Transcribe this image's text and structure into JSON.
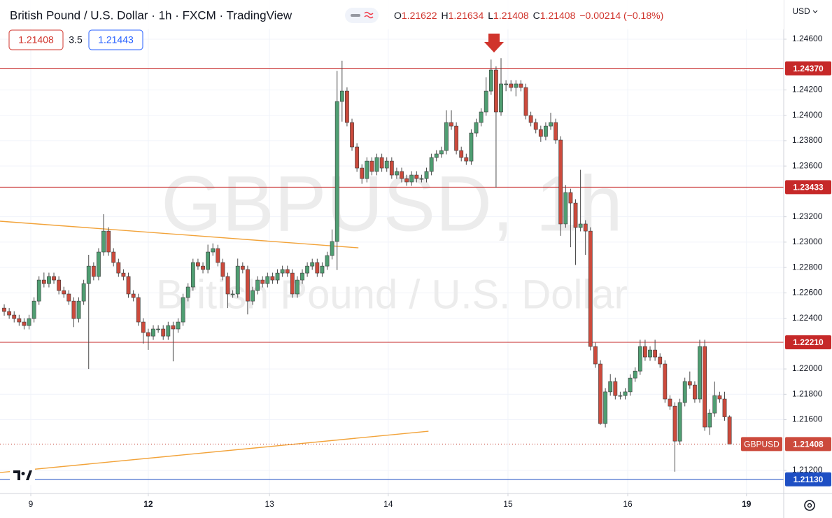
{
  "chart_data": {
    "type": "candlestick",
    "title": "British Pound / U.S. Dollar · 1h · FXCM · TradingView",
    "watermark_symbol": "GBPUSD, 1h",
    "watermark_name": "British Pound / U.S. Dollar",
    "currency": "USD",
    "legend_values": [
      {
        "key": "O",
        "value": "1.21622"
      },
      {
        "key": "H",
        "value": "1.21634"
      },
      {
        "key": "L",
        "value": "1.21408"
      },
      {
        "key": "C",
        "value": "1.21408"
      }
    ],
    "change": "−0.00214 (−0.18%)",
    "bid": "1.21408",
    "spread": "3.5",
    "ask": "1.21443",
    "up_color": "#4f9e72",
    "down_color": "#cc4a3c",
    "series": [
      {
        "name": "GBPUSD",
        "open": [
          1.2248,
          1.22453,
          1.22425,
          1.22397,
          1.2237,
          1.22342,
          1.22397,
          1.22535,
          1.22701,
          1.22673,
          1.22729,
          1.22701,
          1.22618,
          1.22591,
          1.22535,
          1.22397,
          1.22535,
          1.22673,
          1.22811,
          1.22729,
          1.22922,
          1.23087,
          1.22922,
          1.22839,
          1.22756,
          1.22729,
          1.22591,
          1.22563,
          1.2237,
          1.22287,
          1.22259,
          1.22315,
          1.22315,
          1.22259,
          1.22342,
          1.22315,
          1.2237,
          1.22563,
          1.22646,
          1.22839,
          1.22811,
          1.22784,
          1.22922,
          1.22949,
          1.22839,
          1.22729,
          1.22591,
          1.22591,
          1.22811,
          1.22784,
          1.22535,
          1.22618,
          1.22701,
          1.22673,
          1.22729,
          1.22701,
          1.22756,
          1.22784,
          1.22756,
          1.22591,
          1.22701,
          1.22756,
          1.22811,
          1.22839,
          1.22756,
          1.22811,
          1.22894,
          1.23005,
          1.24109,
          1.24191,
          1.23943,
          1.2375,
          1.23584,
          1.23501,
          1.23639,
          1.23557,
          1.23667,
          1.23584,
          1.23639,
          1.23529,
          1.23557,
          1.23501,
          1.23474,
          1.23529,
          1.23501,
          1.23501,
          1.23557,
          1.23667,
          1.23695,
          1.23722,
          1.23943,
          1.23915,
          1.23722,
          1.23667,
          1.23639,
          1.2386,
          1.23943,
          1.24026,
          1.24191,
          1.24357,
          1.24026,
          1.24247,
          1.24247,
          1.24219,
          1.24247,
          1.24219,
          1.23998,
          1.23943,
          1.23888,
          1.23833,
          1.23915,
          1.23943,
          1.23805,
          1.23143,
          1.23391,
          1.23308,
          1.23115,
          1.23143,
          1.23087,
          1.22177,
          1.22039,
          1.21569,
          1.21819,
          1.21901,
          1.2179,
          1.2179,
          1.21819,
          1.21928,
          1.21983,
          1.22177,
          1.22094,
          1.22149,
          1.22094,
          1.22039,
          1.21763,
          1.21707,
          1.21431,
          1.21735,
          1.21901,
          1.21873,
          1.21763,
          1.22177,
          1.21542,
          1.21652,
          1.2179,
          1.21763,
          1.21622
        ],
        "high": [
          1.2251,
          1.2248,
          1.22455,
          1.22427,
          1.224,
          1.22427,
          1.22565,
          1.22731,
          1.2276,
          1.22759,
          1.22759,
          1.22731,
          1.22648,
          1.22621,
          1.22565,
          1.22565,
          1.22703,
          1.229,
          1.22841,
          1.22952,
          1.2322,
          1.23117,
          1.22952,
          1.22869,
          1.22786,
          1.22759,
          1.22621,
          1.22593,
          1.224,
          1.22317,
          1.22345,
          1.22345,
          1.22345,
          1.22372,
          1.22372,
          1.224,
          1.22593,
          1.22676,
          1.22869,
          1.22869,
          1.22841,
          1.2298,
          1.2299,
          1.22979,
          1.22869,
          1.22759,
          1.22621,
          1.2287,
          1.22841,
          1.22814,
          1.22648,
          1.22731,
          1.22731,
          1.22759,
          1.22759,
          1.22786,
          1.22814,
          1.22814,
          1.22786,
          1.22731,
          1.22786,
          1.22841,
          1.22869,
          1.22869,
          1.22841,
          1.22924,
          1.231,
          1.2435,
          1.2443,
          1.24221,
          1.23973,
          1.2378,
          1.23614,
          1.23669,
          1.23669,
          1.23697,
          1.23697,
          1.23669,
          1.23669,
          1.23587,
          1.23587,
          1.23531,
          1.23559,
          1.23559,
          1.23531,
          1.23587,
          1.23697,
          1.23725,
          1.23752,
          1.2404,
          1.2404,
          1.23945,
          1.23752,
          1.23697,
          1.2389,
          1.23973,
          1.24056,
          1.243,
          1.2444,
          1.24387,
          1.2445,
          1.24277,
          1.24277,
          1.24277,
          1.24277,
          1.24249,
          1.24028,
          1.23973,
          1.23918,
          1.23945,
          1.2402,
          1.23973,
          1.23835,
          1.2345,
          1.23421,
          1.23338,
          1.2357,
          1.23173,
          1.23117,
          1.22207,
          1.22069,
          1.21849,
          1.2196,
          1.21931,
          1.2182,
          1.21849,
          1.21958,
          1.22013,
          1.2223,
          1.2223,
          1.22179,
          1.2223,
          1.22124,
          1.22069,
          1.21793,
          1.21737,
          1.21765,
          1.21931,
          1.2198,
          1.21903,
          1.2223,
          1.2223,
          1.21682,
          1.219,
          1.2182,
          1.2182,
          1.21634
        ],
        "low": [
          1.2242,
          1.22395,
          1.22367,
          1.2234,
          1.22312,
          1.22312,
          1.22367,
          1.22505,
          1.22643,
          1.22643,
          1.22671,
          1.22588,
          1.22561,
          1.22505,
          1.2233,
          1.22367,
          1.22505,
          1.22,
          1.22699,
          1.22699,
          1.22892,
          1.22892,
          1.22809,
          1.22726,
          1.22699,
          1.22561,
          1.22533,
          1.2234,
          1.222,
          1.2215,
          1.22229,
          1.22285,
          1.22229,
          1.22229,
          1.2206,
          1.22285,
          1.2234,
          1.22533,
          1.22616,
          1.22781,
          1.22754,
          1.22754,
          1.22892,
          1.22809,
          1.22699,
          1.2248,
          1.22561,
          1.22561,
          1.22754,
          1.2243,
          1.22505,
          1.22588,
          1.22643,
          1.22643,
          1.22671,
          1.22671,
          1.22726,
          1.22726,
          1.22561,
          1.22561,
          1.22671,
          1.22726,
          1.22781,
          1.22726,
          1.22726,
          1.22781,
          1.22864,
          1.2278,
          1.2395,
          1.23913,
          1.2372,
          1.23554,
          1.2346,
          1.23471,
          1.23527,
          1.23527,
          1.23554,
          1.23554,
          1.23499,
          1.23499,
          1.23471,
          1.23444,
          1.23444,
          1.23471,
          1.23471,
          1.23471,
          1.23527,
          1.23637,
          1.23665,
          1.23692,
          1.23885,
          1.23692,
          1.23637,
          1.23609,
          1.23609,
          1.2383,
          1.23913,
          1.23996,
          1.24161,
          1.2343,
          1.23996,
          1.2419,
          1.24189,
          1.2415,
          1.24189,
          1.23968,
          1.23913,
          1.23858,
          1.2379,
          1.23803,
          1.23885,
          1.23775,
          1.2305,
          1.23113,
          1.2296,
          1.2282,
          1.23085,
          1.229,
          1.22147,
          1.22009,
          1.2156,
          1.21539,
          1.21789,
          1.2176,
          1.2176,
          1.2176,
          1.21789,
          1.21898,
          1.21953,
          1.22064,
          1.22064,
          1.22064,
          1.22009,
          1.21733,
          1.21677,
          1.2119,
          1.21401,
          1.21705,
          1.21843,
          1.21733,
          1.21733,
          1.21512,
          1.2148,
          1.21622,
          1.21733,
          1.21592,
          1.21408
        ],
        "close": [
          1.22453,
          1.22425,
          1.22397,
          1.2237,
          1.22342,
          1.22397,
          1.22535,
          1.22701,
          1.22673,
          1.22729,
          1.22701,
          1.22618,
          1.22591,
          1.22535,
          1.22397,
          1.22535,
          1.22673,
          1.22811,
          1.22729,
          1.22922,
          1.23087,
          1.22922,
          1.22839,
          1.22756,
          1.22729,
          1.22591,
          1.22563,
          1.2237,
          1.22287,
          1.22259,
          1.22315,
          1.22315,
          1.22259,
          1.22342,
          1.22315,
          1.2237,
          1.22563,
          1.22646,
          1.22839,
          1.22811,
          1.22784,
          1.22922,
          1.22949,
          1.22839,
          1.22729,
          1.22591,
          1.22591,
          1.22811,
          1.22784,
          1.22535,
          1.22618,
          1.22701,
          1.22673,
          1.22729,
          1.22701,
          1.22756,
          1.22784,
          1.22756,
          1.22591,
          1.22701,
          1.22756,
          1.22811,
          1.22839,
          1.22756,
          1.22811,
          1.22894,
          1.23005,
          1.24109,
          1.24191,
          1.23943,
          1.2375,
          1.23584,
          1.23501,
          1.23639,
          1.23557,
          1.23667,
          1.23584,
          1.23639,
          1.23529,
          1.23557,
          1.23501,
          1.23474,
          1.23529,
          1.23501,
          1.23501,
          1.23557,
          1.23667,
          1.23695,
          1.23722,
          1.23943,
          1.23915,
          1.23722,
          1.23667,
          1.23639,
          1.2386,
          1.23943,
          1.24026,
          1.24191,
          1.24357,
          1.24026,
          1.24247,
          1.24247,
          1.24219,
          1.24247,
          1.24219,
          1.23998,
          1.23943,
          1.23888,
          1.23833,
          1.23915,
          1.23943,
          1.23805,
          1.23143,
          1.23391,
          1.23308,
          1.23115,
          1.23143,
          1.23087,
          1.22177,
          1.22039,
          1.21569,
          1.21819,
          1.21901,
          1.2179,
          1.2179,
          1.21819,
          1.21928,
          1.21983,
          1.22177,
          1.22094,
          1.22149,
          1.22094,
          1.22039,
          1.21763,
          1.21707,
          1.21431,
          1.21735,
          1.21901,
          1.21873,
          1.21763,
          1.22177,
          1.21542,
          1.21652,
          1.2179,
          1.21763,
          1.21622,
          1.21408
        ]
      }
    ],
    "last_price": {
      "value": 1.21408,
      "label": "1.21408"
    },
    "levels": [
      {
        "value": 1.2437,
        "label": "1.24370",
        "color": "#c62828"
      },
      {
        "value": 1.23433,
        "label": "1.23433",
        "color": "#c62828"
      },
      {
        "value": 1.2221,
        "label": "1.22210",
        "color": "#c62828"
      },
      {
        "value": 1.2113,
        "label": "1.21130",
        "color": "#1e4fc4"
      }
    ],
    "trendlines": [
      {
        "x": [
          -0.85,
          71.3
        ],
        "y": [
          1.23165,
          1.22955
        ],
        "color": "#f2a33a"
      },
      {
        "x": [
          -0.85,
          85.4
        ],
        "y": [
          1.21183,
          1.21509
        ],
        "color": "#f2a33a"
      }
    ],
    "xlim": [
      -0.85,
      156.9
    ],
    "ylim": [
      1.21018,
      1.24909
    ],
    "xticks": [
      {
        "value": 5.35,
        "label": "9"
      },
      {
        "value": 29,
        "label": "12"
      },
      {
        "value": 53.4,
        "label": "13"
      },
      {
        "value": 77.3,
        "label": "14"
      },
      {
        "value": 101.4,
        "label": "15"
      },
      {
        "value": 125.5,
        "label": "16"
      },
      {
        "value": 149.4,
        "label": "19"
      }
    ],
    "yticks": [
      {
        "value": 1.246,
        "label": "1.24600"
      },
      {
        "value": 1.242,
        "label": "1.24200"
      },
      {
        "value": 1.24,
        "label": "1.24000"
      },
      {
        "value": 1.238,
        "label": "1.23800"
      },
      {
        "value": 1.236,
        "label": "1.23600"
      },
      {
        "value": 1.232,
        "label": "1.23200"
      },
      {
        "value": 1.23,
        "label": "1.23000"
      },
      {
        "value": 1.228,
        "label": "1.22800"
      },
      {
        "value": 1.226,
        "label": "1.22600"
      },
      {
        "value": 1.224,
        "label": "1.22400"
      },
      {
        "value": 1.22,
        "label": "1.22000"
      },
      {
        "value": 1.218,
        "label": "1.21800"
      },
      {
        "value": 1.216,
        "label": "1.21600"
      },
      {
        "value": 1.212,
        "label": "1.21200"
      }
    ],
    "grid": true
  }
}
